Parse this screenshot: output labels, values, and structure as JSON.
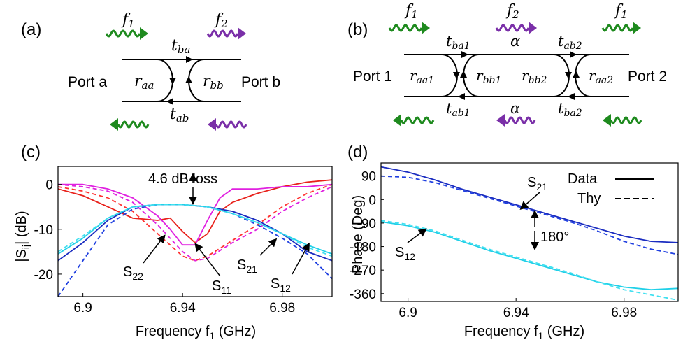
{
  "panels": {
    "a": {
      "label": "(a)",
      "port_left": "Port a",
      "port_right": "Port b",
      "f1": "f",
      "f1_sub": "1",
      "f2": "f",
      "f2_sub": "2",
      "t_top": "t",
      "t_top_sub": "ba",
      "t_bot": "t",
      "t_bot_sub": "ab",
      "r_left": "r",
      "r_left_sub": "aa",
      "r_right": "r",
      "r_right_sub": "bb",
      "colors": {
        "f1": "#1e8a1e",
        "f2": "#7a2fa8"
      }
    },
    "b": {
      "label": "(b)",
      "port_left": "Port 1",
      "port_right": "Port 2",
      "f1": "f",
      "f1_sub": "1",
      "f2": "f",
      "f2_sub": "2",
      "f1b": "f",
      "f1b_sub": "1",
      "t1": "t",
      "t1_sub": "ba1",
      "t2": "t",
      "t2_sub": "ab2",
      "t3": "t",
      "t3_sub": "ab1",
      "t4": "t",
      "t4_sub": "ba2",
      "alpha_top": "α",
      "alpha_bot": "α",
      "r1": "r",
      "r1_sub": "aa1",
      "r2": "r",
      "r2_sub": "bb1",
      "r3": "r",
      "r3_sub": "bb2",
      "r4": "r",
      "r4_sub": "aa2"
    }
  },
  "chart_data": [
    {
      "panel": "(c)",
      "type": "line",
      "xlabel": "Frequency f",
      "xlabel_sub": "1",
      "xlabel_unit": " (GHz)",
      "ylabel": "|S",
      "ylabel_sub": "ij",
      "ylabel_unit": "| (dB)",
      "xlim": [
        6.89,
        7.0
      ],
      "ylim": [
        -25,
        4
      ],
      "xticks": [
        "6.9",
        "6.94",
        "6.98"
      ],
      "xtick_values": [
        6.9,
        6.94,
        6.98
      ],
      "yticks": [
        "0",
        "-10",
        "-20"
      ],
      "ytick_values": [
        0,
        -10,
        -20
      ],
      "annotation": "4.6 dB loss",
      "labels": {
        "S22": "S",
        "S22_sub": "22",
        "S11": "S",
        "S11_sub": "11",
        "S21": "S",
        "S21_sub": "21",
        "S12": "S",
        "S12_sub": "12"
      },
      "series": [
        {
          "color": "#e8201a",
          "dash": false,
          "x": [
            6.89,
            6.9,
            6.91,
            6.92,
            6.93,
            6.935,
            6.94,
            6.945,
            6.95,
            6.955,
            6.96,
            6.97,
            6.98,
            6.99,
            7.0
          ],
          "y": [
            -1,
            -2.5,
            -5,
            -7.5,
            -8,
            -7.5,
            -10.5,
            -13,
            -11,
            -6,
            -4,
            -2,
            -0.5,
            0.5,
            1
          ]
        },
        {
          "color": "#ff3030",
          "dash": true,
          "x": [
            6.89,
            6.9,
            6.91,
            6.92,
            6.93,
            6.94,
            6.945,
            6.95,
            6.96,
            6.97,
            6.98,
            6.99,
            7.0
          ],
          "y": [
            -0.5,
            -1.5,
            -3,
            -6,
            -11,
            -16,
            -17,
            -16,
            -12.5,
            -9,
            -5,
            -2,
            0
          ]
        },
        {
          "color": "#e020e0",
          "dash": false,
          "x": [
            6.89,
            6.9,
            6.91,
            6.92,
            6.93,
            6.935,
            6.94,
            6.945,
            6.95,
            6.955,
            6.96,
            6.97,
            6.98,
            6.99,
            7.0
          ],
          "y": [
            0,
            0,
            -1,
            -3,
            -7,
            -10,
            -13.5,
            -13.5,
            -8,
            -3,
            -1,
            -1,
            -0.5,
            -0.5,
            0
          ]
        },
        {
          "color": "#e020e0",
          "dash": true,
          "x": [
            6.89,
            6.9,
            6.91,
            6.92,
            6.93,
            6.94,
            6.945,
            6.95,
            6.96,
            6.97,
            6.98,
            6.99,
            7.0
          ],
          "y": [
            0,
            -0.5,
            -1.5,
            -4,
            -9,
            -15,
            -17,
            -16.5,
            -13,
            -10,
            -6,
            -3,
            -0.5
          ]
        },
        {
          "color": "#1a2cc0",
          "dash": false,
          "x": [
            6.89,
            6.9,
            6.91,
            6.92,
            6.93,
            6.94,
            6.95,
            6.96,
            6.97,
            6.98,
            6.99,
            7.0
          ],
          "y": [
            -17,
            -13,
            -8,
            -5,
            -4.5,
            -4.5,
            -5,
            -6,
            -8,
            -11,
            -15,
            -17
          ]
        },
        {
          "color": "#2040e0",
          "dash": true,
          "x": [
            6.89,
            6.9,
            6.91,
            6.92,
            6.93,
            6.94,
            6.95,
            6.96,
            6.97,
            6.98,
            6.99,
            7.0
          ],
          "y": [
            -25,
            -17,
            -9,
            -5.5,
            -4.5,
            -4.5,
            -5,
            -6.5,
            -9,
            -12,
            -15.5,
            -21
          ]
        },
        {
          "color": "#20d0e8",
          "dash": false,
          "x": [
            6.89,
            6.9,
            6.91,
            6.92,
            6.93,
            6.94,
            6.95,
            6.96,
            6.97,
            6.98,
            6.99,
            7.0
          ],
          "y": [
            -15.5,
            -12,
            -7.5,
            -5,
            -4.5,
            -4.5,
            -5,
            -6.5,
            -8.5,
            -11,
            -13.5,
            -15.5
          ]
        },
        {
          "color": "#40e0f0",
          "dash": true,
          "x": [
            6.89,
            6.9,
            6.91,
            6.92,
            6.93,
            6.94,
            6.95,
            6.96,
            6.97,
            6.98,
            6.99,
            7.0
          ],
          "y": [
            -15,
            -11.5,
            -7.5,
            -5,
            -4.5,
            -4.5,
            -5,
            -6.5,
            -8.5,
            -11,
            -14,
            -16
          ]
        }
      ]
    },
    {
      "panel": "(d)",
      "type": "line",
      "xlabel": "Frequency f",
      "xlabel_sub": "1",
      "xlabel_unit": " (GHz)",
      "ylabel": "Phase (Deg)",
      "xlim": [
        6.89,
        7.0
      ],
      "ylim": [
        -390,
        140
      ],
      "xticks": [
        "6.9",
        "6.94",
        "6.98"
      ],
      "xtick_values": [
        6.9,
        6.94,
        6.98
      ],
      "yticks": [
        "90",
        "0",
        "-90",
        "-180",
        "-270",
        "-360"
      ],
      "ytick_values": [
        90,
        0,
        -90,
        -180,
        -270,
        -360
      ],
      "annotation": "180°",
      "legend": {
        "data": "Data",
        "thy": "Thy"
      },
      "labels": {
        "S21": "S",
        "S21_sub": "21",
        "S12": "S",
        "S12_sub": "12"
      },
      "series": [
        {
          "color": "#1a2cc0",
          "dash": false,
          "x": [
            6.89,
            6.9,
            6.91,
            6.92,
            6.93,
            6.94,
            6.95,
            6.96,
            6.97,
            6.98,
            6.99,
            7.0
          ],
          "y": [
            125,
            105,
            75,
            40,
            10,
            -20,
            -50,
            -80,
            -110,
            -140,
            -160,
            -165
          ]
        },
        {
          "color": "#2040e0",
          "dash": true,
          "x": [
            6.89,
            6.9,
            6.91,
            6.92,
            6.93,
            6.94,
            6.95,
            6.96,
            6.97,
            6.98,
            6.99,
            7.0
          ],
          "y": [
            90,
            85,
            65,
            35,
            5,
            -25,
            -55,
            -85,
            -120,
            -160,
            -190,
            -210
          ]
        },
        {
          "color": "#20d0e8",
          "dash": false,
          "x": [
            6.89,
            6.9,
            6.91,
            6.92,
            6.93,
            6.94,
            6.95,
            6.96,
            6.97,
            6.98,
            6.99,
            7.0
          ],
          "y": [
            -85,
            -100,
            -125,
            -160,
            -195,
            -225,
            -255,
            -285,
            -315,
            -335,
            -345,
            -340
          ]
        },
        {
          "color": "#40e0f0",
          "dash": true,
          "x": [
            6.89,
            6.9,
            6.91,
            6.92,
            6.93,
            6.94,
            6.95,
            6.96,
            6.97,
            6.98,
            6.99,
            7.0
          ],
          "y": [
            -80,
            -95,
            -120,
            -155,
            -190,
            -220,
            -250,
            -280,
            -315,
            -345,
            -365,
            -385
          ]
        }
      ]
    }
  ]
}
